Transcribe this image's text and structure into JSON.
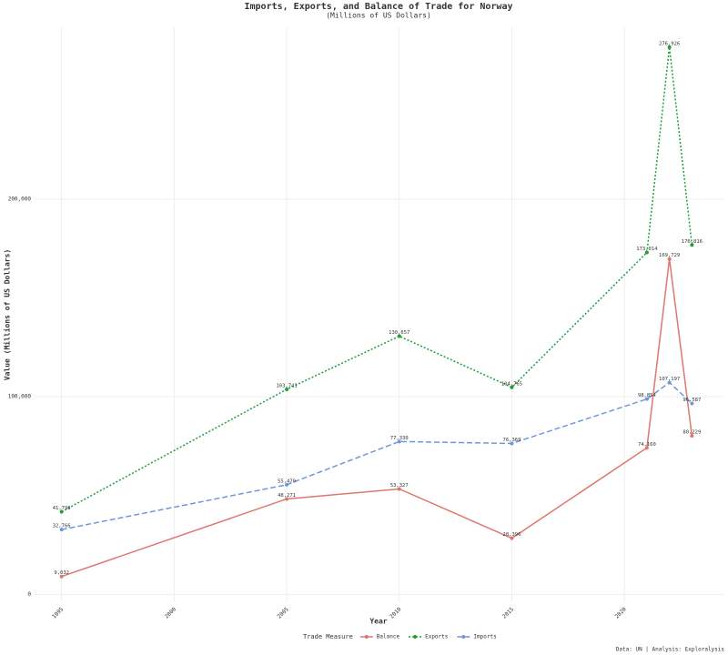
{
  "chart_data": {
    "type": "line",
    "title": "Imports, Exports, and Balance of Trade for Norway",
    "subtitle": "(Millions of US Dollars)",
    "x_label": "Year",
    "y_label": "Value (Millions of US Dollars)",
    "caption": "Data: UN | Analysis: Exploralysis",
    "legend_title": "Trade Measure",
    "legend_position": "bottom",
    "grid": true,
    "x": [
      1995,
      2005,
      2010,
      2015,
      2021,
      2022,
      2023
    ],
    "xlim": [
      1993.8,
      2024.4
    ],
    "xticks": [
      1995,
      2000,
      2005,
      2010,
      2015,
      2020
    ],
    "ylim": [
      -4000,
      287000
    ],
    "yticks": [
      0,
      {
        "value": 100000,
        "label": "100,000"
      },
      {
        "value": 200000,
        "label": "200,000"
      }
    ],
    "series": [
      {
        "name": "Balance",
        "color": "#e0766e",
        "line_style": "solid",
        "values": [
          9032,
          48271,
          53327,
          28396,
          74160,
          169729,
          80229
        ],
        "value_labels": [
          "9,032",
          "48,271",
          "53,327",
          "28,396",
          "74,160",
          "169,729",
          "80,229"
        ]
      },
      {
        "name": "Exports",
        "color": "#1f9e3a",
        "line_style": "dotted",
        "values": [
          41798,
          103741,
          130657,
          104765,
          173014,
          276926,
          176816
        ],
        "value_labels": [
          "41,798",
          "103,741",
          "130,657",
          "104,765",
          "173,014",
          "276,926",
          "176,816"
        ]
      },
      {
        "name": "Imports",
        "color": "#6f98dc",
        "line_style": "dashed",
        "values": [
          32766,
          55470,
          77330,
          76369,
          98854,
          107197,
          96587
        ],
        "value_labels": [
          "32,766",
          "55,470",
          "77,330",
          "76,369",
          "98,854",
          "107,197",
          "96,587"
        ]
      }
    ]
  }
}
